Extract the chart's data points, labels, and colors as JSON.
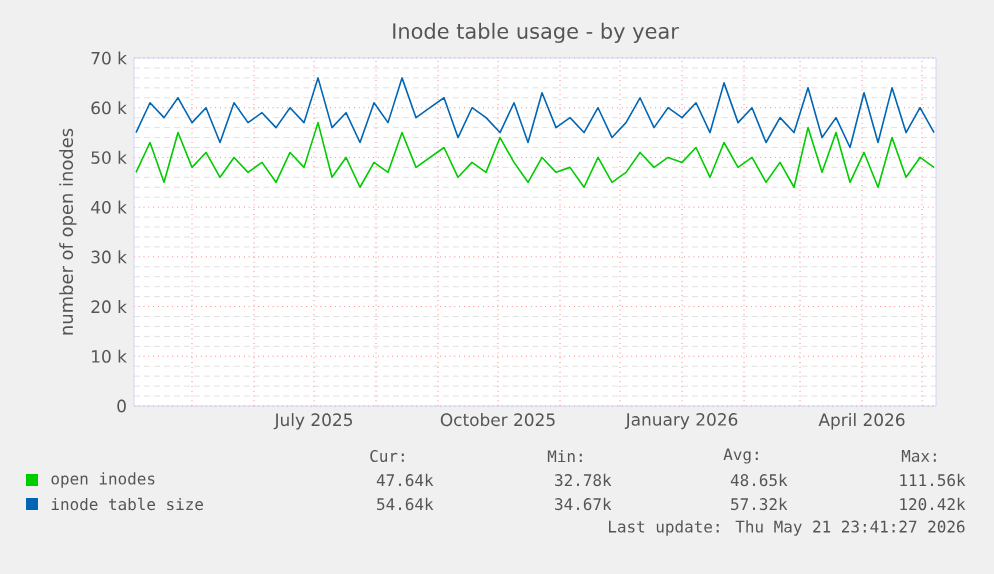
{
  "chart_data": {
    "type": "line",
    "title": "Inode table usage - by year",
    "ylabel": "number of open inodes",
    "x": [
      "2025-04-03",
      "2025-04-10",
      "2025-04-17",
      "2025-04-24",
      "2025-05-01",
      "2025-05-08",
      "2025-05-15",
      "2025-05-22",
      "2025-05-29",
      "2025-06-05",
      "2025-06-12",
      "2025-06-19",
      "2025-06-26",
      "2025-07-03",
      "2025-07-10",
      "2025-07-17",
      "2025-07-24",
      "2025-07-31",
      "2025-08-07",
      "2025-08-14",
      "2025-08-21",
      "2025-08-28",
      "2025-09-04",
      "2025-09-11",
      "2025-09-18",
      "2025-09-25",
      "2025-10-02",
      "2025-10-09",
      "2025-10-16",
      "2025-10-23",
      "2025-10-30",
      "2025-11-06",
      "2025-11-13",
      "2025-11-20",
      "2025-11-27",
      "2025-12-04",
      "2025-12-11",
      "2025-12-18",
      "2025-12-25",
      "2026-01-01",
      "2026-01-08",
      "2026-01-15",
      "2026-01-22",
      "2026-01-29",
      "2026-02-05",
      "2026-02-12",
      "2026-02-19",
      "2026-02-26",
      "2026-03-05",
      "2026-03-12",
      "2026-03-19",
      "2026-03-26",
      "2026-04-02",
      "2026-04-09",
      "2026-04-16",
      "2026-04-23",
      "2026-04-30",
      "2026-05-07"
    ],
    "series": [
      {
        "name": "open inodes",
        "color": "#00cc00",
        "values": [
          47000,
          53000,
          45000,
          55000,
          48000,
          51000,
          46000,
          50000,
          47000,
          49000,
          45000,
          51000,
          48000,
          57000,
          46000,
          50000,
          44000,
          49000,
          47000,
          55000,
          48000,
          50000,
          52000,
          46000,
          49000,
          47000,
          54000,
          49000,
          45000,
          50000,
          47000,
          48000,
          44000,
          50000,
          45000,
          47000,
          51000,
          48000,
          50000,
          49000,
          52000,
          46000,
          53000,
          48000,
          50000,
          45000,
          49000,
          44000,
          56000,
          47000,
          55000,
          45000,
          51000,
          44000,
          54000,
          46000,
          50000,
          48000
        ]
      },
      {
        "name": "inode table size",
        "color": "#0066b3",
        "values": [
          55000,
          61000,
          58000,
          62000,
          57000,
          60000,
          53000,
          61000,
          57000,
          59000,
          56000,
          60000,
          57000,
          66000,
          56000,
          59000,
          53000,
          61000,
          57000,
          66000,
          58000,
          60000,
          62000,
          54000,
          60000,
          58000,
          55000,
          61000,
          53000,
          63000,
          56000,
          58000,
          55000,
          60000,
          54000,
          57000,
          62000,
          56000,
          60000,
          58000,
          61000,
          55000,
          65000,
          57000,
          60000,
          53000,
          58000,
          55000,
          64000,
          54000,
          58000,
          52000,
          63000,
          53000,
          64000,
          55000,
          60000,
          55000
        ]
      }
    ],
    "xlim": [
      "2025-04-02",
      "2026-05-08"
    ],
    "xticks": [
      {
        "value": "2025-05-01",
        "label": null
      },
      {
        "value": "2025-06-01",
        "label": null
      },
      {
        "value": "2025-07-01",
        "label": "July 2025"
      },
      {
        "value": "2025-08-01",
        "label": null
      },
      {
        "value": "2025-09-01",
        "label": null
      },
      {
        "value": "2025-10-01",
        "label": "October 2025"
      },
      {
        "value": "2025-11-01",
        "label": null
      },
      {
        "value": "2025-12-01",
        "label": null
      },
      {
        "value": "2026-01-01",
        "label": "January 2026"
      },
      {
        "value": "2026-02-01",
        "label": null
      },
      {
        "value": "2026-03-01",
        "label": null
      },
      {
        "value": "2026-04-01",
        "label": "April 2026"
      },
      {
        "value": "2026-05-01",
        "label": null
      }
    ],
    "ylim": [
      0,
      70000
    ],
    "yticks": [
      0,
      {
        "value": 10000,
        "label": "10 k"
      },
      {
        "value": 20000,
        "label": "20 k"
      },
      {
        "value": 30000,
        "label": "30 k"
      },
      {
        "value": 40000,
        "label": "40 k"
      },
      {
        "value": 50000,
        "label": "50 k"
      },
      {
        "value": 60000,
        "label": "60 k"
      },
      {
        "value": 70000,
        "label": "70 k"
      }
    ],
    "grid": true,
    "legend": "bottom",
    "annotations": [
      "Cur:",
      "Min:",
      "Avg:",
      "Max:",
      "47.64k",
      "32.78k",
      "48.65k",
      "111.56k",
      "54.64k",
      "34.67k",
      "57.32k",
      "120.42k",
      "Last update: Thu May 21 23:41:27 2026"
    ]
  }
}
